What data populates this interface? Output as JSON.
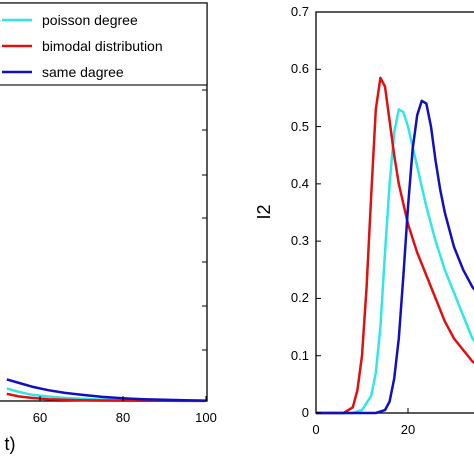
{
  "colors": {
    "poisson": "#33e6e6",
    "bimodal": "#dd1111",
    "same": "#1111bb"
  },
  "chart_data": [
    {
      "type": "line",
      "xlabel": "t)",
      "xlim": [
        0,
        100
      ],
      "xticks": [
        "60",
        "80",
        "100"
      ],
      "legend": [
        "poisson degree",
        "bimodal distribution",
        "same dagree"
      ],
      "series": [
        {
          "name": "poisson degree",
          "color": "#33e6e6",
          "x": [
            52,
            55,
            58,
            62,
            66,
            70,
            75,
            80,
            85,
            90,
            95,
            100
          ],
          "y": [
            0.014,
            0.01,
            0.007,
            0.005,
            0.0035,
            0.0025,
            0.0015,
            0.001,
            0.0007,
            0.0005,
            0.0003,
            0.0002
          ]
        },
        {
          "name": "bimodal distribution",
          "color": "#dd1111",
          "x": [
            52,
            55,
            58,
            62,
            66,
            70,
            75,
            80,
            85,
            90,
            95,
            100
          ],
          "y": [
            0.008,
            0.005,
            0.0035,
            0.002,
            0.0013,
            0.0009,
            0.0006,
            0.0004,
            0.0003,
            0.0002,
            0.0001,
            0.0001
          ]
        },
        {
          "name": "same dagree",
          "color": "#1111bb",
          "x": [
            52,
            55,
            58,
            62,
            66,
            70,
            75,
            80,
            85,
            90,
            95,
            100
          ],
          "y": [
            0.024,
            0.02,
            0.016,
            0.012,
            0.009,
            0.007,
            0.0045,
            0.003,
            0.002,
            0.0013,
            0.0008,
            0.0005
          ]
        }
      ]
    },
    {
      "type": "line",
      "ylabel": "I2",
      "ylim": [
        0,
        0.7
      ],
      "yticks": [
        "0",
        "0.1",
        "0.2",
        "0.3",
        "0.4",
        "0.5",
        "0.6",
        "0.7"
      ],
      "xticks": [
        "0",
        "20"
      ],
      "series": [
        {
          "name": "poisson degree",
          "color": "#33e6e6",
          "x": [
            0,
            8,
            10,
            12,
            13,
            14,
            15,
            16,
            17,
            18,
            19,
            20,
            22,
            24,
            26,
            28,
            30,
            32,
            34,
            36
          ],
          "y": [
            0,
            0,
            0.005,
            0.03,
            0.07,
            0.15,
            0.28,
            0.4,
            0.49,
            0.53,
            0.525,
            0.5,
            0.43,
            0.36,
            0.3,
            0.25,
            0.21,
            0.17,
            0.13,
            0.11
          ]
        },
        {
          "name": "bimodal distribution",
          "color": "#dd1111",
          "x": [
            0,
            6,
            8,
            9,
            10,
            11,
            12,
            13,
            14,
            15,
            16,
            17,
            18,
            20,
            22,
            24,
            26,
            28,
            30,
            32,
            34,
            36
          ],
          "y": [
            0,
            0,
            0.01,
            0.04,
            0.1,
            0.22,
            0.38,
            0.53,
            0.585,
            0.57,
            0.51,
            0.45,
            0.4,
            0.33,
            0.28,
            0.24,
            0.2,
            0.16,
            0.13,
            0.11,
            0.09,
            0.08
          ]
        },
        {
          "name": "same dagree",
          "color": "#1111bb",
          "x": [
            0,
            13,
            15,
            16,
            17,
            18,
            19,
            20,
            21,
            22,
            23,
            24,
            25,
            26,
            27,
            28,
            30,
            32,
            34,
            36
          ],
          "y": [
            0,
            0,
            0.005,
            0.02,
            0.06,
            0.13,
            0.24,
            0.36,
            0.46,
            0.52,
            0.545,
            0.54,
            0.5,
            0.44,
            0.39,
            0.35,
            0.29,
            0.25,
            0.22,
            0.2
          ]
        }
      ]
    }
  ]
}
